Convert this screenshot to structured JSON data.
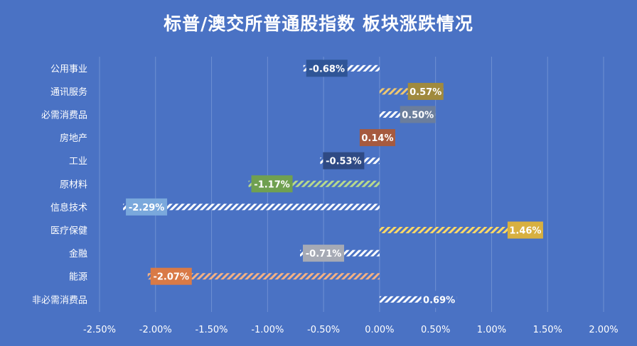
{
  "chart_data": {
    "type": "bar",
    "orientation": "horizontal",
    "title": "标普/澳交所普通股指数 板块涨跌情况",
    "categories": [
      "公用事业",
      "通讯服务",
      "必需消费品",
      "房地产",
      "工业",
      "原材料",
      "信息技术",
      "医疗保健",
      "金融",
      "能源",
      "非必需消费品"
    ],
    "values": [
      -0.68,
      0.57,
      0.5,
      0.14,
      -0.53,
      -1.17,
      -2.29,
      1.46,
      -0.71,
      -2.07,
      0.69
    ],
    "value_labels": [
      "-0.68%",
      "0.57%",
      "0.50%",
      "0.14%",
      "-0.53%",
      "-1.17%",
      "-2.29%",
      "1.46%",
      "-0.71%",
      "-2.07%",
      "0.69%"
    ],
    "xlim": [
      -2.5,
      2.0
    ],
    "x_ticks": [
      "-2.50%",
      "-2.00%",
      "-1.50%",
      "-1.00%",
      "-0.50%",
      "0.00%",
      "0.50%",
      "1.00%",
      "1.50%",
      "2.00%"
    ],
    "x_tick_values": [
      -2.5,
      -2.0,
      -1.5,
      -1.0,
      -0.5,
      0.0,
      0.5,
      1.0,
      1.5,
      2.0
    ],
    "grid": true,
    "bar_colors": [
      "#ffffff",
      "#f0c870",
      "#ffffff",
      "#ffffff",
      "#ffffff",
      "#b7d98c",
      "#ffffff",
      "#ffd966",
      "#ffffff",
      "#f4b183",
      "#ffffff"
    ],
    "label_box_colors": [
      "#2f5597",
      "#a08a3e",
      "#6b7e9c",
      "#a65a3f",
      "#2f4a84",
      "#70a050",
      "#7aa8dc",
      "#d8b040",
      "#a6aab5",
      "#d97a46",
      "#4a72c4"
    ]
  }
}
